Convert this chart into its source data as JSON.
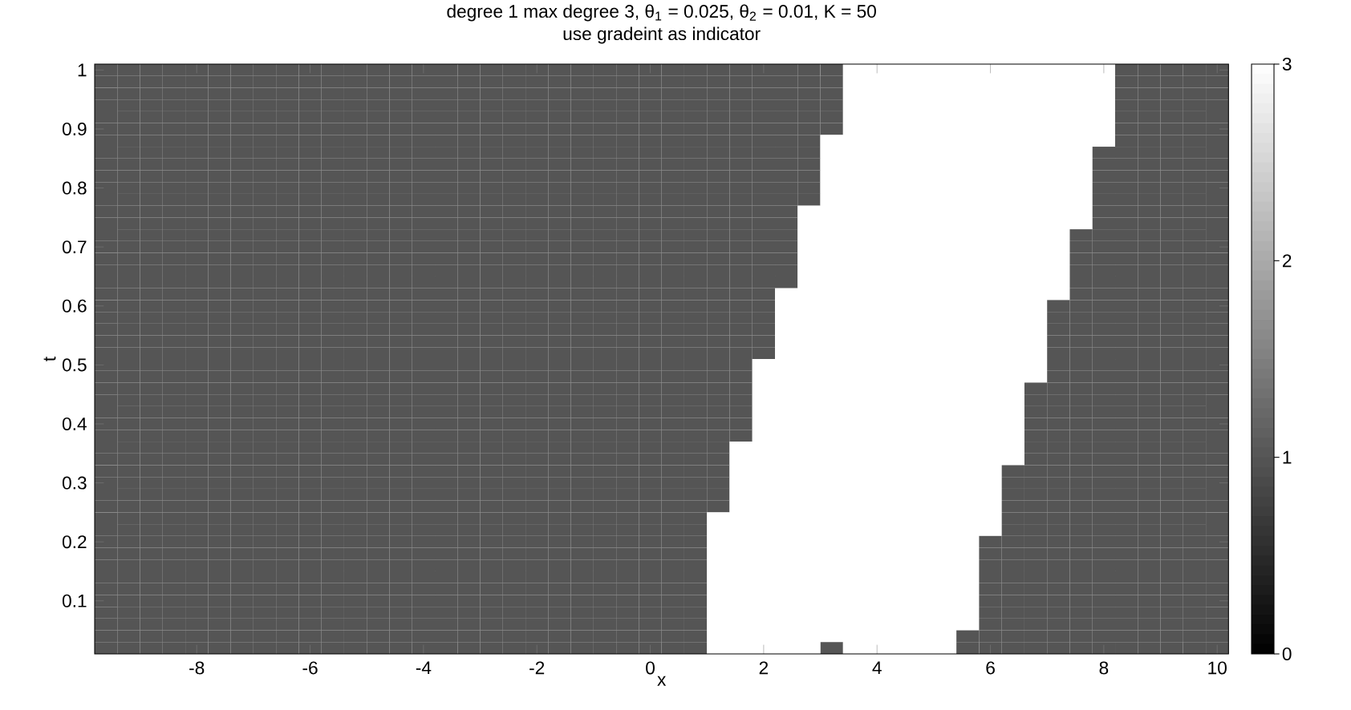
{
  "chart_data": {
    "type": "heatmap",
    "title": "degree 1 max degree 3, θ$_{1}$ = 0.025, θ$_{2}$ = 0.01, K = 50",
    "subtitle": "use gradeint as indicator",
    "xlabel": "x",
    "ylabel": "t",
    "clim": [
      0,
      3
    ],
    "cticks": [
      0,
      1,
      2,
      3
    ],
    "categories": [
      null,
      null,
      null,
      null,
      "-8",
      null,
      null,
      null,
      null,
      "-6",
      null,
      null,
      null,
      null,
      "-4",
      null,
      null,
      null,
      null,
      "-2",
      null,
      null,
      null,
      null,
      "0",
      null,
      null,
      null,
      null,
      "2",
      null,
      null,
      null,
      null,
      "4",
      null,
      null,
      null,
      null,
      "6",
      null,
      null,
      null,
      null,
      "8",
      null,
      null,
      null,
      null,
      "10"
    ],
    "y_categories": [
      "1",
      null,
      null,
      null,
      null,
      "0.9",
      null,
      null,
      null,
      null,
      "0.8",
      null,
      null,
      null,
      null,
      "0.7",
      null,
      null,
      null,
      null,
      "0.6",
      null,
      null,
      null,
      null,
      "0.5",
      null,
      null,
      null,
      null,
      "0.4",
      null,
      null,
      null,
      null,
      "0.3",
      null,
      null,
      null,
      null,
      "0.2",
      null,
      null,
      null,
      null,
      "0.1",
      null,
      null,
      null,
      null
    ],
    "cells": [
      [
        1,
        1,
        1,
        1,
        1,
        1,
        1,
        1,
        1,
        1,
        1,
        1,
        1,
        1,
        1,
        1,
        1,
        1,
        1,
        1,
        1,
        1,
        1,
        1,
        1,
        1,
        1,
        1,
        1,
        1,
        1,
        1,
        1,
        3,
        3,
        3,
        3,
        3,
        3,
        3,
        3,
        3,
        3,
        3,
        3,
        1,
        1,
        1,
        1,
        1
      ],
      [
        1,
        1,
        1,
        1,
        1,
        1,
        1,
        1,
        1,
        1,
        1,
        1,
        1,
        1,
        1,
        1,
        1,
        1,
        1,
        1,
        1,
        1,
        1,
        1,
        1,
        1,
        1,
        1,
        1,
        1,
        1,
        1,
        1,
        3,
        3,
        3,
        3,
        3,
        3,
        3,
        3,
        3,
        3,
        3,
        3,
        1,
        1,
        1,
        1,
        1
      ],
      [
        1,
        1,
        1,
        1,
        1,
        1,
        1,
        1,
        1,
        1,
        1,
        1,
        1,
        1,
        1,
        1,
        1,
        1,
        1,
        1,
        1,
        1,
        1,
        1,
        1,
        1,
        1,
        1,
        1,
        1,
        1,
        1,
        1,
        3,
        3,
        3,
        3,
        3,
        3,
        3,
        3,
        3,
        3,
        3,
        3,
        1,
        1,
        1,
        1,
        1
      ],
      [
        1,
        1,
        1,
        1,
        1,
        1,
        1,
        1,
        1,
        1,
        1,
        1,
        1,
        1,
        1,
        1,
        1,
        1,
        1,
        1,
        1,
        1,
        1,
        1,
        1,
        1,
        1,
        1,
        1,
        1,
        1,
        1,
        1,
        3,
        3,
        3,
        3,
        3,
        3,
        3,
        3,
        3,
        3,
        3,
        3,
        1,
        1,
        1,
        1,
        1
      ],
      [
        1,
        1,
        1,
        1,
        1,
        1,
        1,
        1,
        1,
        1,
        1,
        1,
        1,
        1,
        1,
        1,
        1,
        1,
        1,
        1,
        1,
        1,
        1,
        1,
        1,
        1,
        1,
        1,
        1,
        1,
        1,
        1,
        1,
        3,
        3,
        3,
        3,
        3,
        3,
        3,
        3,
        3,
        3,
        3,
        3,
        1,
        1,
        1,
        1,
        1
      ],
      [
        1,
        1,
        1,
        1,
        1,
        1,
        1,
        1,
        1,
        1,
        1,
        1,
        1,
        1,
        1,
        1,
        1,
        1,
        1,
        1,
        1,
        1,
        1,
        1,
        1,
        1,
        1,
        1,
        1,
        1,
        1,
        1,
        1,
        3,
        3,
        3,
        3,
        3,
        3,
        3,
        3,
        3,
        3,
        3,
        3,
        1,
        1,
        1,
        1,
        1
      ],
      [
        1,
        1,
        1,
        1,
        1,
        1,
        1,
        1,
        1,
        1,
        1,
        1,
        1,
        1,
        1,
        1,
        1,
        1,
        1,
        1,
        1,
        1,
        1,
        1,
        1,
        1,
        1,
        1,
        1,
        1,
        1,
        1,
        3,
        3,
        3,
        3,
        3,
        3,
        3,
        3,
        3,
        3,
        3,
        3,
        3,
        1,
        1,
        1,
        1,
        1
      ],
      [
        1,
        1,
        1,
        1,
        1,
        1,
        1,
        1,
        1,
        1,
        1,
        1,
        1,
        1,
        1,
        1,
        1,
        1,
        1,
        1,
        1,
        1,
        1,
        1,
        1,
        1,
        1,
        1,
        1,
        1,
        1,
        1,
        3,
        3,
        3,
        3,
        3,
        3,
        3,
        3,
        3,
        3,
        3,
        3,
        1,
        1,
        1,
        1,
        1,
        1
      ],
      [
        1,
        1,
        1,
        1,
        1,
        1,
        1,
        1,
        1,
        1,
        1,
        1,
        1,
        1,
        1,
        1,
        1,
        1,
        1,
        1,
        1,
        1,
        1,
        1,
        1,
        1,
        1,
        1,
        1,
        1,
        1,
        1,
        3,
        3,
        3,
        3,
        3,
        3,
        3,
        3,
        3,
        3,
        3,
        3,
        1,
        1,
        1,
        1,
        1,
        1
      ],
      [
        1,
        1,
        1,
        1,
        1,
        1,
        1,
        1,
        1,
        1,
        1,
        1,
        1,
        1,
        1,
        1,
        1,
        1,
        1,
        1,
        1,
        1,
        1,
        1,
        1,
        1,
        1,
        1,
        1,
        1,
        1,
        1,
        3,
        3,
        3,
        3,
        3,
        3,
        3,
        3,
        3,
        3,
        3,
        3,
        1,
        1,
        1,
        1,
        1,
        1
      ],
      [
        1,
        1,
        1,
        1,
        1,
        1,
        1,
        1,
        1,
        1,
        1,
        1,
        1,
        1,
        1,
        1,
        1,
        1,
        1,
        1,
        1,
        1,
        1,
        1,
        1,
        1,
        1,
        1,
        1,
        1,
        1,
        1,
        3,
        3,
        3,
        3,
        3,
        3,
        3,
        3,
        3,
        3,
        3,
        3,
        1,
        1,
        1,
        1,
        1,
        1
      ],
      [
        1,
        1,
        1,
        1,
        1,
        1,
        1,
        1,
        1,
        1,
        1,
        1,
        1,
        1,
        1,
        1,
        1,
        1,
        1,
        1,
        1,
        1,
        1,
        1,
        1,
        1,
        1,
        1,
        1,
        1,
        1,
        1,
        3,
        3,
        3,
        3,
        3,
        3,
        3,
        3,
        3,
        3,
        3,
        3,
        1,
        1,
        1,
        1,
        1,
        1
      ],
      [
        1,
        1,
        1,
        1,
        1,
        1,
        1,
        1,
        1,
        1,
        1,
        1,
        1,
        1,
        1,
        1,
        1,
        1,
        1,
        1,
        1,
        1,
        1,
        1,
        1,
        1,
        1,
        1,
        1,
        1,
        1,
        3,
        3,
        3,
        3,
        3,
        3,
        3,
        3,
        3,
        3,
        3,
        3,
        3,
        1,
        1,
        1,
        1,
        1,
        1
      ],
      [
        1,
        1,
        1,
        1,
        1,
        1,
        1,
        1,
        1,
        1,
        1,
        1,
        1,
        1,
        1,
        1,
        1,
        1,
        1,
        1,
        1,
        1,
        1,
        1,
        1,
        1,
        1,
        1,
        1,
        1,
        1,
        3,
        3,
        3,
        3,
        3,
        3,
        3,
        3,
        3,
        3,
        3,
        3,
        3,
        1,
        1,
        1,
        1,
        1,
        1
      ],
      [
        1,
        1,
        1,
        1,
        1,
        1,
        1,
        1,
        1,
        1,
        1,
        1,
        1,
        1,
        1,
        1,
        1,
        1,
        1,
        1,
        1,
        1,
        1,
        1,
        1,
        1,
        1,
        1,
        1,
        1,
        1,
        3,
        3,
        3,
        3,
        3,
        3,
        3,
        3,
        3,
        3,
        3,
        3,
        1,
        1,
        1,
        1,
        1,
        1,
        1
      ],
      [
        1,
        1,
        1,
        1,
        1,
        1,
        1,
        1,
        1,
        1,
        1,
        1,
        1,
        1,
        1,
        1,
        1,
        1,
        1,
        1,
        1,
        1,
        1,
        1,
        1,
        1,
        1,
        1,
        1,
        1,
        1,
        3,
        3,
        3,
        3,
        3,
        3,
        3,
        3,
        3,
        3,
        3,
        3,
        1,
        1,
        1,
        1,
        1,
        1,
        1
      ],
      [
        1,
        1,
        1,
        1,
        1,
        1,
        1,
        1,
        1,
        1,
        1,
        1,
        1,
        1,
        1,
        1,
        1,
        1,
        1,
        1,
        1,
        1,
        1,
        1,
        1,
        1,
        1,
        1,
        1,
        1,
        1,
        3,
        3,
        3,
        3,
        3,
        3,
        3,
        3,
        3,
        3,
        3,
        3,
        1,
        1,
        1,
        1,
        1,
        1,
        1
      ],
      [
        1,
        1,
        1,
        1,
        1,
        1,
        1,
        1,
        1,
        1,
        1,
        1,
        1,
        1,
        1,
        1,
        1,
        1,
        1,
        1,
        1,
        1,
        1,
        1,
        1,
        1,
        1,
        1,
        1,
        1,
        1,
        3,
        3,
        3,
        3,
        3,
        3,
        3,
        3,
        3,
        3,
        3,
        3,
        1,
        1,
        1,
        1,
        1,
        1,
        1
      ],
      [
        1,
        1,
        1,
        1,
        1,
        1,
        1,
        1,
        1,
        1,
        1,
        1,
        1,
        1,
        1,
        1,
        1,
        1,
        1,
        1,
        1,
        1,
        1,
        1,
        1,
        1,
        1,
        1,
        1,
        1,
        1,
        3,
        3,
        3,
        3,
        3,
        3,
        3,
        3,
        3,
        3,
        3,
        3,
        1,
        1,
        1,
        1,
        1,
        1,
        1
      ],
      [
        1,
        1,
        1,
        1,
        1,
        1,
        1,
        1,
        1,
        1,
        1,
        1,
        1,
        1,
        1,
        1,
        1,
        1,
        1,
        1,
        1,
        1,
        1,
        1,
        1,
        1,
        1,
        1,
        1,
        1,
        3,
        3,
        3,
        3,
        3,
        3,
        3,
        3,
        3,
        3,
        3,
        3,
        3,
        1,
        1,
        1,
        1,
        1,
        1,
        1
      ],
      [
        1,
        1,
        1,
        1,
        1,
        1,
        1,
        1,
        1,
        1,
        1,
        1,
        1,
        1,
        1,
        1,
        1,
        1,
        1,
        1,
        1,
        1,
        1,
        1,
        1,
        1,
        1,
        1,
        1,
        1,
        3,
        3,
        3,
        3,
        3,
        3,
        3,
        3,
        3,
        3,
        3,
        3,
        1,
        1,
        1,
        1,
        1,
        1,
        1,
        1
      ],
      [
        1,
        1,
        1,
        1,
        1,
        1,
        1,
        1,
        1,
        1,
        1,
        1,
        1,
        1,
        1,
        1,
        1,
        1,
        1,
        1,
        1,
        1,
        1,
        1,
        1,
        1,
        1,
        1,
        1,
        1,
        3,
        3,
        3,
        3,
        3,
        3,
        3,
        3,
        3,
        3,
        3,
        3,
        1,
        1,
        1,
        1,
        1,
        1,
        1,
        1
      ],
      [
        1,
        1,
        1,
        1,
        1,
        1,
        1,
        1,
        1,
        1,
        1,
        1,
        1,
        1,
        1,
        1,
        1,
        1,
        1,
        1,
        1,
        1,
        1,
        1,
        1,
        1,
        1,
        1,
        1,
        1,
        3,
        3,
        3,
        3,
        3,
        3,
        3,
        3,
        3,
        3,
        3,
        3,
        1,
        1,
        1,
        1,
        1,
        1,
        1,
        1
      ],
      [
        1,
        1,
        1,
        1,
        1,
        1,
        1,
        1,
        1,
        1,
        1,
        1,
        1,
        1,
        1,
        1,
        1,
        1,
        1,
        1,
        1,
        1,
        1,
        1,
        1,
        1,
        1,
        1,
        1,
        1,
        3,
        3,
        3,
        3,
        3,
        3,
        3,
        3,
        3,
        3,
        3,
        3,
        1,
        1,
        1,
        1,
        1,
        1,
        1,
        1
      ],
      [
        1,
        1,
        1,
        1,
        1,
        1,
        1,
        1,
        1,
        1,
        1,
        1,
        1,
        1,
        1,
        1,
        1,
        1,
        1,
        1,
        1,
        1,
        1,
        1,
        1,
        1,
        1,
        1,
        1,
        1,
        3,
        3,
        3,
        3,
        3,
        3,
        3,
        3,
        3,
        3,
        3,
        3,
        1,
        1,
        1,
        1,
        1,
        1,
        1,
        1
      ],
      [
        1,
        1,
        1,
        1,
        1,
        1,
        1,
        1,
        1,
        1,
        1,
        1,
        1,
        1,
        1,
        1,
        1,
        1,
        1,
        1,
        1,
        1,
        1,
        1,
        1,
        1,
        1,
        1,
        1,
        3,
        3,
        3,
        3,
        3,
        3,
        3,
        3,
        3,
        3,
        3,
        3,
        3,
        1,
        1,
        1,
        1,
        1,
        1,
        1,
        1
      ],
      [
        1,
        1,
        1,
        1,
        1,
        1,
        1,
        1,
        1,
        1,
        1,
        1,
        1,
        1,
        1,
        1,
        1,
        1,
        1,
        1,
        1,
        1,
        1,
        1,
        1,
        1,
        1,
        1,
        1,
        3,
        3,
        3,
        3,
        3,
        3,
        3,
        3,
        3,
        3,
        3,
        3,
        3,
        1,
        1,
        1,
        1,
        1,
        1,
        1,
        1
      ],
      [
        1,
        1,
        1,
        1,
        1,
        1,
        1,
        1,
        1,
        1,
        1,
        1,
        1,
        1,
        1,
        1,
        1,
        1,
        1,
        1,
        1,
        1,
        1,
        1,
        1,
        1,
        1,
        1,
        1,
        3,
        3,
        3,
        3,
        3,
        3,
        3,
        3,
        3,
        3,
        3,
        3,
        1,
        1,
        1,
        1,
        1,
        1,
        1,
        1,
        1
      ],
      [
        1,
        1,
        1,
        1,
        1,
        1,
        1,
        1,
        1,
        1,
        1,
        1,
        1,
        1,
        1,
        1,
        1,
        1,
        1,
        1,
        1,
        1,
        1,
        1,
        1,
        1,
        1,
        1,
        1,
        3,
        3,
        3,
        3,
        3,
        3,
        3,
        3,
        3,
        3,
        3,
        3,
        1,
        1,
        1,
        1,
        1,
        1,
        1,
        1,
        1
      ],
      [
        1,
        1,
        1,
        1,
        1,
        1,
        1,
        1,
        1,
        1,
        1,
        1,
        1,
        1,
        1,
        1,
        1,
        1,
        1,
        1,
        1,
        1,
        1,
        1,
        1,
        1,
        1,
        1,
        1,
        3,
        3,
        3,
        3,
        3,
        3,
        3,
        3,
        3,
        3,
        3,
        3,
        1,
        1,
        1,
        1,
        1,
        1,
        1,
        1,
        1
      ],
      [
        1,
        1,
        1,
        1,
        1,
        1,
        1,
        1,
        1,
        1,
        1,
        1,
        1,
        1,
        1,
        1,
        1,
        1,
        1,
        1,
        1,
        1,
        1,
        1,
        1,
        1,
        1,
        1,
        1,
        3,
        3,
        3,
        3,
        3,
        3,
        3,
        3,
        3,
        3,
        3,
        3,
        1,
        1,
        1,
        1,
        1,
        1,
        1,
        1,
        1
      ],
      [
        1,
        1,
        1,
        1,
        1,
        1,
        1,
        1,
        1,
        1,
        1,
        1,
        1,
        1,
        1,
        1,
        1,
        1,
        1,
        1,
        1,
        1,
        1,
        1,
        1,
        1,
        1,
        1,
        1,
        3,
        3,
        3,
        3,
        3,
        3,
        3,
        3,
        3,
        3,
        3,
        3,
        1,
        1,
        1,
        1,
        1,
        1,
        1,
        1,
        1
      ],
      [
        1,
        1,
        1,
        1,
        1,
        1,
        1,
        1,
        1,
        1,
        1,
        1,
        1,
        1,
        1,
        1,
        1,
        1,
        1,
        1,
        1,
        1,
        1,
        1,
        1,
        1,
        1,
        1,
        3,
        3,
        3,
        3,
        3,
        3,
        3,
        3,
        3,
        3,
        3,
        3,
        3,
        1,
        1,
        1,
        1,
        1,
        1,
        1,
        1,
        1
      ],
      [
        1,
        1,
        1,
        1,
        1,
        1,
        1,
        1,
        1,
        1,
        1,
        1,
        1,
        1,
        1,
        1,
        1,
        1,
        1,
        1,
        1,
        1,
        1,
        1,
        1,
        1,
        1,
        1,
        3,
        3,
        3,
        3,
        3,
        3,
        3,
        3,
        3,
        3,
        3,
        3,
        3,
        1,
        1,
        1,
        1,
        1,
        1,
        1,
        1,
        1
      ],
      [
        1,
        1,
        1,
        1,
        1,
        1,
        1,
        1,
        1,
        1,
        1,
        1,
        1,
        1,
        1,
        1,
        1,
        1,
        1,
        1,
        1,
        1,
        1,
        1,
        1,
        1,
        1,
        1,
        3,
        3,
        3,
        3,
        3,
        3,
        3,
        3,
        3,
        3,
        3,
        3,
        1,
        1,
        1,
        1,
        1,
        1,
        1,
        1,
        1,
        1
      ],
      [
        1,
        1,
        1,
        1,
        1,
        1,
        1,
        1,
        1,
        1,
        1,
        1,
        1,
        1,
        1,
        1,
        1,
        1,
        1,
        1,
        1,
        1,
        1,
        1,
        1,
        1,
        1,
        1,
        3,
        3,
        3,
        3,
        3,
        3,
        3,
        3,
        3,
        3,
        3,
        3,
        1,
        1,
        1,
        1,
        1,
        1,
        1,
        1,
        1,
        1
      ],
      [
        1,
        1,
        1,
        1,
        1,
        1,
        1,
        1,
        1,
        1,
        1,
        1,
        1,
        1,
        1,
        1,
        1,
        1,
        1,
        1,
        1,
        1,
        1,
        1,
        1,
        1,
        1,
        1,
        3,
        3,
        3,
        3,
        3,
        3,
        3,
        3,
        3,
        3,
        3,
        3,
        1,
        1,
        1,
        1,
        1,
        1,
        1,
        1,
        1,
        1
      ],
      [
        1,
        1,
        1,
        1,
        1,
        1,
        1,
        1,
        1,
        1,
        1,
        1,
        1,
        1,
        1,
        1,
        1,
        1,
        1,
        1,
        1,
        1,
        1,
        1,
        1,
        1,
        1,
        1,
        3,
        3,
        3,
        3,
        3,
        3,
        3,
        3,
        3,
        3,
        3,
        3,
        1,
        1,
        1,
        1,
        1,
        1,
        1,
        1,
        1,
        1
      ],
      [
        1,
        1,
        1,
        1,
        1,
        1,
        1,
        1,
        1,
        1,
        1,
        1,
        1,
        1,
        1,
        1,
        1,
        1,
        1,
        1,
        1,
        1,
        1,
        1,
        1,
        1,
        1,
        3,
        3,
        3,
        3,
        3,
        3,
        3,
        3,
        3,
        3,
        3,
        3,
        3,
        1,
        1,
        1,
        1,
        1,
        1,
        1,
        1,
        1,
        1
      ],
      [
        1,
        1,
        1,
        1,
        1,
        1,
        1,
        1,
        1,
        1,
        1,
        1,
        1,
        1,
        1,
        1,
        1,
        1,
        1,
        1,
        1,
        1,
        1,
        1,
        1,
        1,
        1,
        3,
        3,
        3,
        3,
        3,
        3,
        3,
        3,
        3,
        3,
        3,
        3,
        3,
        1,
        1,
        1,
        1,
        1,
        1,
        1,
        1,
        1,
        1
      ],
      [
        1,
        1,
        1,
        1,
        1,
        1,
        1,
        1,
        1,
        1,
        1,
        1,
        1,
        1,
        1,
        1,
        1,
        1,
        1,
        1,
        1,
        1,
        1,
        1,
        1,
        1,
        1,
        3,
        3,
        3,
        3,
        3,
        3,
        3,
        3,
        3,
        3,
        3,
        3,
        1,
        1,
        1,
        1,
        1,
        1,
        1,
        1,
        1,
        1,
        1
      ],
      [
        1,
        1,
        1,
        1,
        1,
        1,
        1,
        1,
        1,
        1,
        1,
        1,
        1,
        1,
        1,
        1,
        1,
        1,
        1,
        1,
        1,
        1,
        1,
        1,
        1,
        1,
        1,
        3,
        3,
        3,
        3,
        3,
        3,
        3,
        3,
        3,
        3,
        3,
        3,
        1,
        1,
        1,
        1,
        1,
        1,
        1,
        1,
        1,
        1,
        1
      ],
      [
        1,
        1,
        1,
        1,
        1,
        1,
        1,
        1,
        1,
        1,
        1,
        1,
        1,
        1,
        1,
        1,
        1,
        1,
        1,
        1,
        1,
        1,
        1,
        1,
        1,
        1,
        1,
        3,
        3,
        3,
        3,
        3,
        3,
        3,
        3,
        3,
        3,
        3,
        3,
        1,
        1,
        1,
        1,
        1,
        1,
        1,
        1,
        1,
        1,
        1
      ],
      [
        1,
        1,
        1,
        1,
        1,
        1,
        1,
        1,
        1,
        1,
        1,
        1,
        1,
        1,
        1,
        1,
        1,
        1,
        1,
        1,
        1,
        1,
        1,
        1,
        1,
        1,
        1,
        3,
        3,
        3,
        3,
        3,
        3,
        3,
        3,
        3,
        3,
        3,
        3,
        1,
        1,
        1,
        1,
        1,
        1,
        1,
        1,
        1,
        1,
        1
      ],
      [
        1,
        1,
        1,
        1,
        1,
        1,
        1,
        1,
        1,
        1,
        1,
        1,
        1,
        1,
        1,
        1,
        1,
        1,
        1,
        1,
        1,
        1,
        1,
        1,
        1,
        1,
        1,
        3,
        3,
        3,
        3,
        3,
        3,
        3,
        3,
        3,
        3,
        3,
        3,
        1,
        1,
        1,
        1,
        1,
        1,
        1,
        1,
        1,
        1,
        1
      ],
      [
        1,
        1,
        1,
        1,
        1,
        1,
        1,
        1,
        1,
        1,
        1,
        1,
        1,
        1,
        1,
        1,
        1,
        1,
        1,
        1,
        1,
        1,
        1,
        1,
        1,
        1,
        1,
        3,
        3,
        3,
        3,
        3,
        3,
        3,
        3,
        3,
        3,
        3,
        3,
        1,
        1,
        1,
        1,
        1,
        1,
        1,
        1,
        1,
        1,
        1
      ],
      [
        1,
        1,
        1,
        1,
        1,
        1,
        1,
        1,
        1,
        1,
        1,
        1,
        1,
        1,
        1,
        1,
        1,
        1,
        1,
        1,
        1,
        1,
        1,
        1,
        1,
        1,
        1,
        3,
        3,
        3,
        3,
        3,
        3,
        3,
        3,
        3,
        3,
        3,
        3,
        1,
        1,
        1,
        1,
        1,
        1,
        1,
        1,
        1,
        1,
        1
      ],
      [
        1,
        1,
        1,
        1,
        1,
        1,
        1,
        1,
        1,
        1,
        1,
        1,
        1,
        1,
        1,
        1,
        1,
        1,
        1,
        1,
        1,
        1,
        1,
        1,
        1,
        1,
        1,
        3,
        3,
        3,
        3,
        3,
        3,
        3,
        3,
        3,
        3,
        3,
        3,
        1,
        1,
        1,
        1,
        1,
        1,
        1,
        1,
        1,
        1,
        1
      ],
      [
        1,
        1,
        1,
        1,
        1,
        1,
        1,
        1,
        1,
        1,
        1,
        1,
        1,
        1,
        1,
        1,
        1,
        1,
        1,
        1,
        1,
        1,
        1,
        1,
        1,
        1,
        1,
        3,
        3,
        3,
        3,
        3,
        3,
        3,
        3,
        3,
        3,
        3,
        1,
        1,
        1,
        1,
        1,
        1,
        1,
        1,
        1,
        1,
        1,
        1
      ],
      [
        1,
        1,
        1,
        1,
        1,
        1,
        1,
        1,
        1,
        1,
        1,
        1,
        1,
        1,
        1,
        1,
        1,
        1,
        1,
        1,
        1,
        1,
        1,
        1,
        1,
        1,
        1,
        3,
        3,
        3,
        3,
        3,
        1,
        3,
        3,
        3,
        3,
        3,
        1,
        1,
        1,
        1,
        1,
        1,
        1,
        1,
        1,
        1,
        1,
        1
      ]
    ]
  }
}
